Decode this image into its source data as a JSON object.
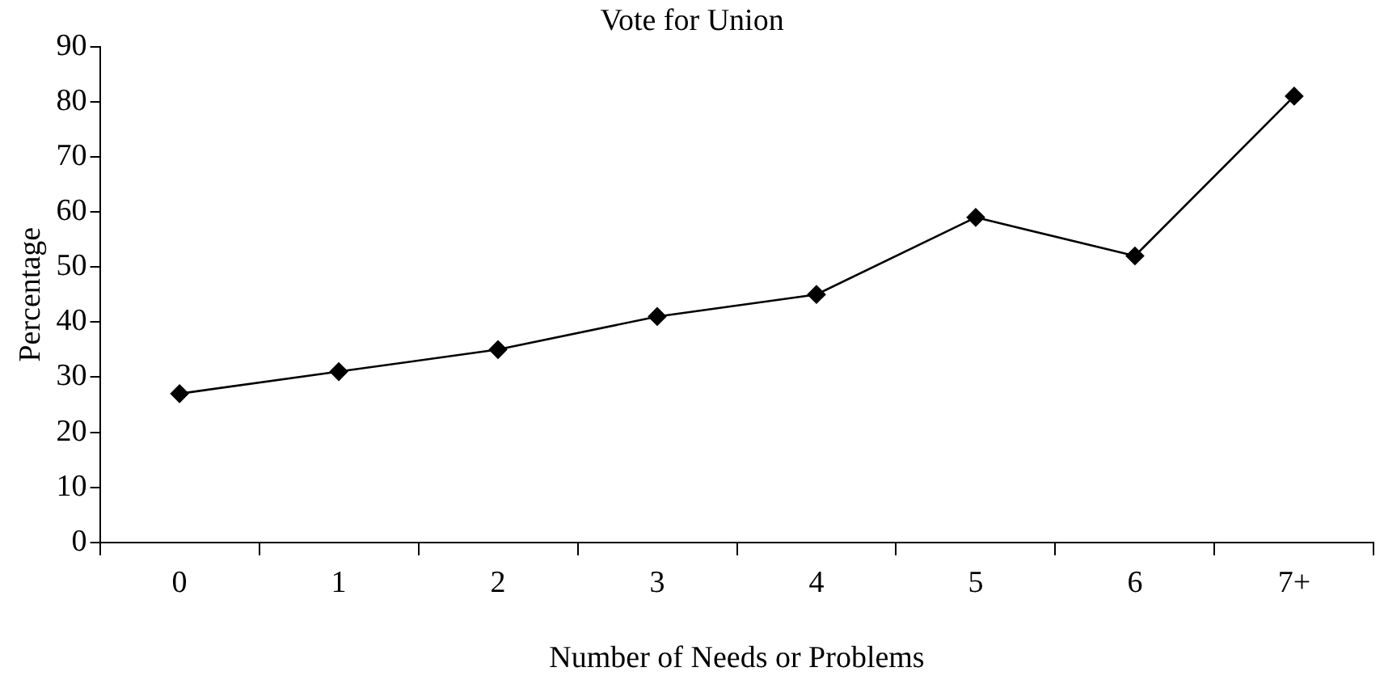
{
  "chart_data": {
    "type": "line",
    "title": "Vote for Union",
    "xlabel": "Number of Needs or Problems",
    "ylabel": "Percentage",
    "categories": [
      "0",
      "1",
      "2",
      "3",
      "4",
      "5",
      "6",
      "7+"
    ],
    "series": [
      {
        "color": "#000000",
        "values": [
          27,
          31,
          35,
          41,
          45,
          59,
          52,
          81
        ]
      }
    ],
    "ylim": [
      0,
      90
    ],
    "yticks": [
      0,
      10,
      20,
      30,
      40,
      50,
      60,
      70,
      80,
      90
    ],
    "grid": false,
    "legend": false,
    "marker": "diamond",
    "line_style": "solid"
  }
}
